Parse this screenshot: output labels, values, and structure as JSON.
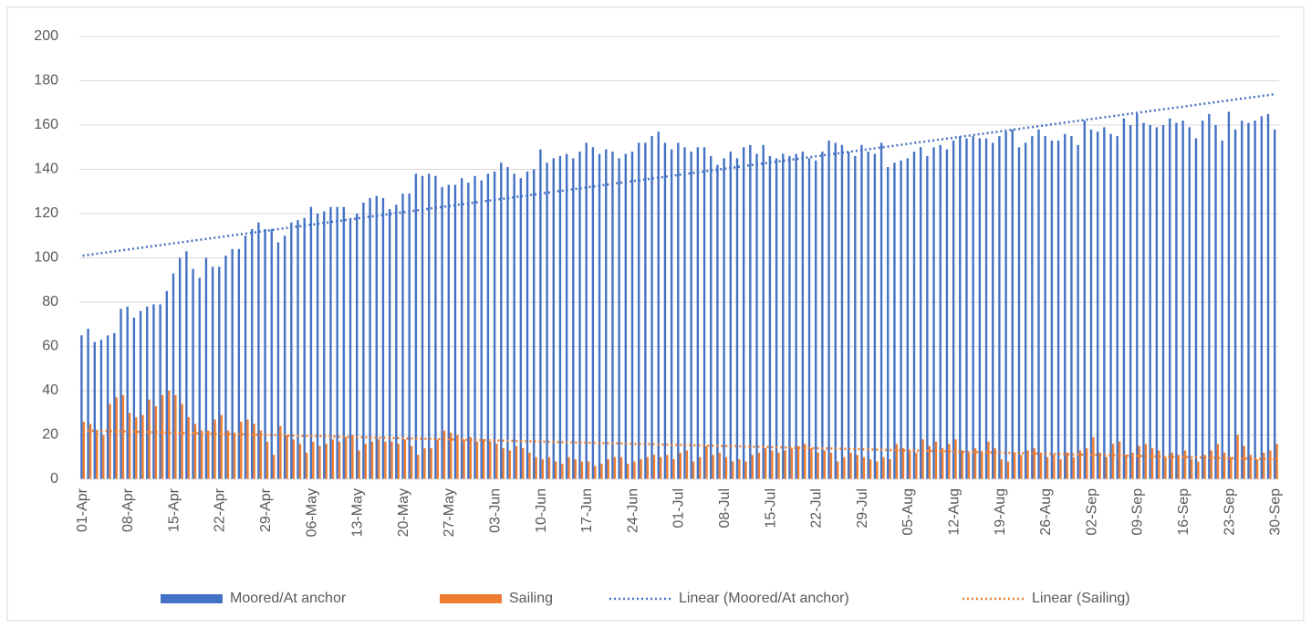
{
  "chart_data": {
    "type": "bar",
    "ylim": [
      0,
      200
    ],
    "yticks": [
      0,
      20,
      40,
      60,
      80,
      100,
      120,
      140,
      160,
      180,
      200
    ],
    "grid": true,
    "legend": "bottom",
    "categories": [
      "01-Apr",
      null,
      null,
      null,
      null,
      null,
      null,
      "08-Apr",
      null,
      null,
      null,
      null,
      null,
      null,
      "15-Apr",
      null,
      null,
      null,
      null,
      null,
      null,
      "22-Apr",
      null,
      null,
      null,
      null,
      null,
      null,
      "29-Apr",
      null,
      null,
      null,
      null,
      null,
      null,
      "06-May",
      null,
      null,
      null,
      null,
      null,
      null,
      "13-May",
      null,
      null,
      null,
      null,
      null,
      null,
      "20-May",
      null,
      null,
      null,
      null,
      null,
      null,
      "27-May",
      null,
      null,
      null,
      null,
      null,
      null,
      "03-Jun",
      null,
      null,
      null,
      null,
      null,
      null,
      "10-Jun",
      null,
      null,
      null,
      null,
      null,
      null,
      "17-Jun",
      null,
      null,
      null,
      null,
      null,
      null,
      "24-Jun",
      null,
      null,
      null,
      null,
      null,
      null,
      "01-Jul",
      null,
      null,
      null,
      null,
      null,
      null,
      "08-Jul",
      null,
      null,
      null,
      null,
      null,
      null,
      "15-Jul",
      null,
      null,
      null,
      null,
      null,
      null,
      "22-Jul",
      null,
      null,
      null,
      null,
      null,
      null,
      "29-Jul",
      null,
      null,
      null,
      null,
      null,
      null,
      "05-Aug",
      null,
      null,
      null,
      null,
      null,
      null,
      "12-Aug",
      null,
      null,
      null,
      null,
      null,
      null,
      "19-Aug",
      null,
      null,
      null,
      null,
      null,
      null,
      "26-Aug",
      null,
      null,
      null,
      null,
      null,
      null,
      "02-Sep",
      null,
      null,
      null,
      null,
      null,
      null,
      "09-Sep",
      null,
      null,
      null,
      null,
      null,
      null,
      "16-Sep",
      null,
      null,
      null,
      null,
      null,
      null,
      "23-Sep",
      null,
      null,
      null,
      null,
      null,
      null,
      "30-Sep"
    ],
    "series": [
      {
        "name": "Moored/At anchor",
        "color": "#4472c4",
        "values": [
          65,
          68,
          62,
          63,
          65,
          66,
          77,
          78,
          73,
          76,
          78,
          79,
          79,
          85,
          93,
          100,
          103,
          95,
          91,
          100,
          96,
          96,
          101,
          104,
          104,
          110,
          113,
          116,
          113,
          113,
          107,
          110,
          116,
          117,
          118,
          123,
          120,
          121,
          123,
          123,
          123,
          118,
          120,
          125,
          127,
          128,
          127,
          122,
          124,
          129,
          129,
          138,
          137,
          138,
          137,
          132,
          133,
          133,
          136,
          134,
          137,
          135,
          138,
          139,
          143,
          141,
          138,
          136,
          139,
          140,
          149,
          143,
          145,
          146,
          147,
          145,
          148,
          152,
          150,
          147,
          149,
          148,
          145,
          147,
          148,
          152,
          152,
          155,
          157,
          152,
          149,
          152,
          150,
          148,
          150,
          150,
          146,
          142,
          145,
          148,
          145,
          150,
          151,
          147,
          151,
          146,
          145,
          147,
          146,
          147,
          148,
          145,
          144,
          148,
          153,
          152,
          151,
          148,
          146,
          151,
          148,
          147,
          152,
          141,
          143,
          144,
          145,
          148,
          150,
          146,
          150,
          151,
          149,
          153,
          155,
          154,
          155,
          154,
          154,
          152,
          155,
          157,
          158,
          150,
          152,
          155,
          158,
          155,
          153,
          153,
          156,
          155,
          151,
          162,
          158,
          157,
          159,
          156,
          155,
          163,
          160,
          165,
          161,
          160,
          159,
          160,
          163,
          161,
          162,
          159,
          154,
          162,
          165,
          160,
          153,
          166,
          158,
          162,
          161,
          162,
          164,
          165,
          158
        ]
      },
      {
        "name": "Sailing",
        "color": "#ed7d31",
        "values": [
          26,
          25,
          22,
          20,
          34,
          37,
          38,
          30,
          28,
          29,
          36,
          33,
          38,
          40,
          38,
          34,
          28,
          25,
          22,
          22,
          27,
          29,
          22,
          21,
          26,
          27,
          25,
          22,
          17,
          11,
          24,
          20,
          18,
          16,
          12,
          17,
          15,
          16,
          18,
          17,
          19,
          20,
          13,
          16,
          17,
          18,
          17,
          17,
          16,
          18,
          15,
          11,
          14,
          14,
          18,
          22,
          21,
          20,
          18,
          19,
          17,
          18,
          17,
          16,
          14,
          13,
          15,
          14,
          12,
          10,
          9,
          10,
          8,
          7,
          10,
          9,
          8,
          8,
          6,
          7,
          9,
          10,
          10,
          7,
          8,
          9,
          10,
          11,
          10,
          11,
          9,
          12,
          13,
          8,
          10,
          15,
          11,
          12,
          10,
          8,
          9,
          8,
          11,
          12,
          14,
          13,
          12,
          13,
          14,
          15,
          16,
          14,
          12,
          13,
          12,
          8,
          10,
          12,
          11,
          10,
          9,
          8,
          10,
          9,
          16,
          14,
          13,
          12,
          18,
          15,
          17,
          14,
          16,
          18,
          13,
          12,
          14,
          12,
          17,
          14,
          9,
          8,
          12,
          11,
          13,
          14,
          12,
          10,
          11,
          9,
          12,
          10,
          13,
          14,
          19,
          12,
          10,
          16,
          17,
          11,
          12,
          15,
          16,
          14,
          13,
          10,
          12,
          11,
          13,
          9,
          8,
          11,
          13,
          16,
          12,
          10,
          20,
          15,
          11,
          9,
          12,
          13,
          16
        ]
      }
    ],
    "trendlines": [
      {
        "name": "Linear (Moored/At anchor)",
        "color": "#4472c4",
        "values": [
          101,
          174
        ]
      },
      {
        "name": "Linear (Sailing)",
        "color": "#ed7d31",
        "values": [
          22,
          9
        ]
      }
    ]
  }
}
